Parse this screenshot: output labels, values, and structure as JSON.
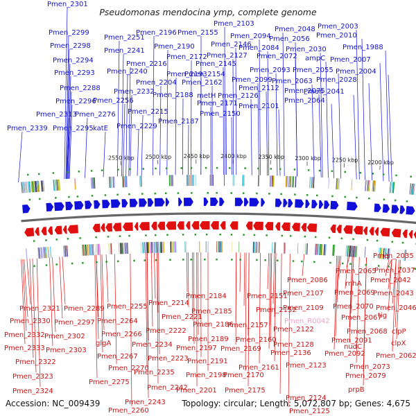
{
  "title": "Pseudomonas mendocina ymp, complete genome",
  "footer": {
    "accession": "Accession: NC_009439",
    "topology": "Topology: circular; Length: 5,072,807 bp; Genes: 4,675"
  },
  "colors": {
    "forward": "#1010d8",
    "reverse": "#e01010",
    "pink": "#f0a0c8",
    "backbone": "#666666",
    "tick_dot": "#2a9a2a"
  },
  "chart_data": {
    "type": "genome-map",
    "ticks": [
      "2200 kbp",
      "2250 kbp",
      "2300 kbp",
      "2350 kbp",
      "2400 kbp",
      "2450 kbp",
      "2500 kbp",
      "2550 kbp"
    ],
    "top_labels": [
      "Pmen_2301",
      "Pmen_2299",
      "Pmen_2298",
      "Pmen_2294",
      "Pmen_2293",
      "Pmen_2288",
      "Pmen_2296",
      "Pmen_2313",
      "Pmen_2276",
      "Pmen_2339",
      "Pmen_2295",
      "katE",
      "Pmen_2251",
      "Pmen_2241",
      "Pmen_2216",
      "Pmen_2240",
      "Pmen_2232",
      "Pmen_2256",
      "Pmen_2215",
      "Pmen_2229",
      "Pmen_2196",
      "Pmen_2190",
      "Pmen_2193",
      "Pmen_2204",
      "Pmen_2188",
      "Pmen_2187",
      "Pmen_2155",
      "Pmen_2172",
      "Pmen_2154",
      "Pmen_2162",
      "Pmen_2171",
      "Pmen_2150",
      "Pmen_2103",
      "Pmen_2146",
      "Pmen_2127",
      "Pmen_2145",
      "Pmen_2126",
      "metH",
      "Pmen_2094",
      "Pmen_2099",
      "Pmen_2112",
      "Pmen_2101",
      "Pmen_2084",
      "Pmen_2093",
      "Pmen_2048",
      "Pmen_2056",
      "Pmen_2072",
      "Pmen_2063",
      "Pmen_2075",
      "Pmen_2064",
      "Pmen_2030",
      "ampC",
      "Pmen_2055",
      "Pmen_2003",
      "Pmen_2010",
      "Pmen_2007",
      "Pmen_2028",
      "Pmen_2041",
      "Pmen_1988",
      "Pmen_2004"
    ],
    "bottom_labels": [
      "Pmen_2321",
      "Pmen_2330",
      "Pmen_2332",
      "Pmen_2333",
      "Pmen_2322",
      "Pmen_2323",
      "Pmen_2324",
      "Pmen_2289",
      "Pmen_2297",
      "Pmen_2302",
      "Pmen_2303",
      "Pmen_2255",
      "Pmen_2264",
      "Pmen_2266",
      "glgA",
      "Pmen_2267",
      "Pmen_2270",
      "Pmen_2275",
      "Pmen_2214",
      "Pmen_2221",
      "Pmen_2222",
      "Pmen_2234",
      "Pmen_2223",
      "Pmen_2235",
      "Pmen_2242",
      "Pmen_2243",
      "Pmen_2260",
      "Pmen_2184",
      "Pmen_2185",
      "Pmen_2186",
      "Pmen_2189",
      "Pmen_2197",
      "Pmen_2191",
      "Pmen_2198",
      "Pmen_2201",
      "Pmen_2151",
      "Pmen_2152",
      "Pmen_2157",
      "Pmen_2160",
      "Pmen_2169",
      "Pmen_2161",
      "Pmen_2170",
      "Pmen_2175",
      "Pmen_2107",
      "Pmen_2109",
      "Pmen_R0042",
      "Pmen_2122",
      "Pmen_2128",
      "Pmen_2136",
      "Pmen_2123",
      "Pmen_2124",
      "Pmen_2125",
      "Pmen_2086",
      "rnhA",
      "Pmen_2065",
      "Pmen_2069",
      "Pmen_2070",
      "Pmen_2067",
      "Pmen_2068",
      "Pmen_2091",
      "nudC",
      "Pmen_2092",
      "Pmen_2073",
      "Pmen_2079",
      "prpB",
      "Pmen_2035",
      "Pmen_2037",
      "Pmen_2042",
      "Pmen_2043",
      "Pmen_2046",
      "tig",
      "clpP",
      "clpX",
      "Pmen_2062"
    ]
  }
}
